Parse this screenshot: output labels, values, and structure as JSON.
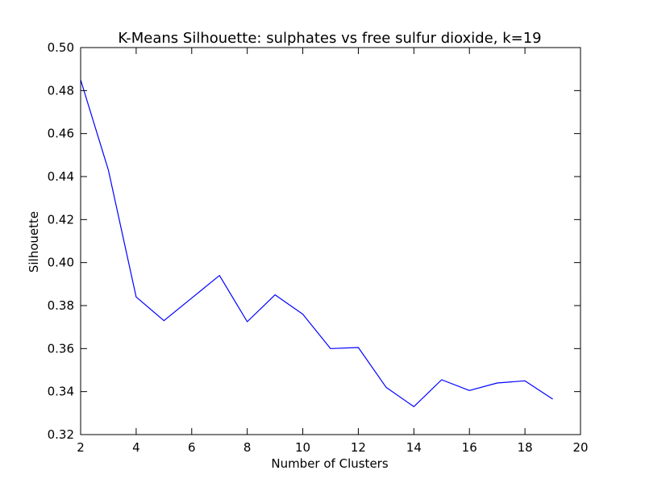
{
  "chart_data": {
    "type": "line",
    "title": "K-Means Silhouette: sulphates vs free sulfur dioxide, k=19",
    "xlabel": "Number of Clusters",
    "ylabel": "Silhouette",
    "xlim": [
      2,
      20
    ],
    "ylim": [
      0.32,
      0.5
    ],
    "xticks": [
      2,
      4,
      6,
      8,
      10,
      12,
      14,
      16,
      18,
      20
    ],
    "yticks": [
      0.32,
      0.34,
      0.36,
      0.38,
      0.4,
      0.42,
      0.44,
      0.46,
      0.48,
      0.5
    ],
    "xtick_labels": [
      "2",
      "4",
      "6",
      "8",
      "10",
      "12",
      "14",
      "16",
      "18",
      "20"
    ],
    "ytick_labels": [
      "0.32",
      "0.34",
      "0.36",
      "0.38",
      "0.40",
      "0.42",
      "0.44",
      "0.46",
      "0.48",
      "0.50"
    ],
    "grid": false,
    "line_color": "#0000ff",
    "series": [
      {
        "x": [
          2,
          3,
          4,
          5,
          6,
          7,
          8,
          9,
          10,
          11,
          12,
          13,
          14,
          15,
          16,
          17,
          18,
          19
        ],
        "values": [
          0.485,
          0.443,
          0.384,
          0.373,
          0.3835,
          0.394,
          0.3725,
          0.385,
          0.376,
          0.36,
          0.3605,
          0.342,
          0.333,
          0.3455,
          0.3405,
          0.344,
          0.345,
          0.3365
        ]
      }
    ]
  }
}
